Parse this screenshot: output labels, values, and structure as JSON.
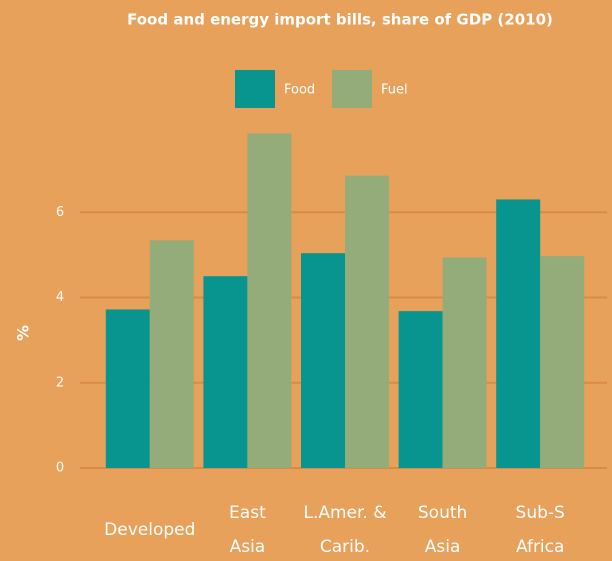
{
  "chart_data": {
    "type": "bar",
    "title": "Food and energy import bills, share of GDP (2010)",
    "y_label": "%",
    "categories": [
      "Developed",
      "East\nAsia",
      "L.Amer. &\nCarib.",
      "South\nAsia",
      "Sub-S\nAfrica"
    ],
    "series": [
      {
        "name": "Food",
        "color": "#08948f",
        "values": [
          3.72,
          4.5,
          5.04,
          3.68,
          6.3
        ]
      },
      {
        "name": "Fuel",
        "color": "#94ac7a",
        "values": [
          5.34,
          7.85,
          6.86,
          4.94,
          4.97
        ]
      }
    ],
    "ylim": [
      0,
      8
    ],
    "yticks": [
      0,
      2,
      4,
      6
    ],
    "grid": true
  }
}
